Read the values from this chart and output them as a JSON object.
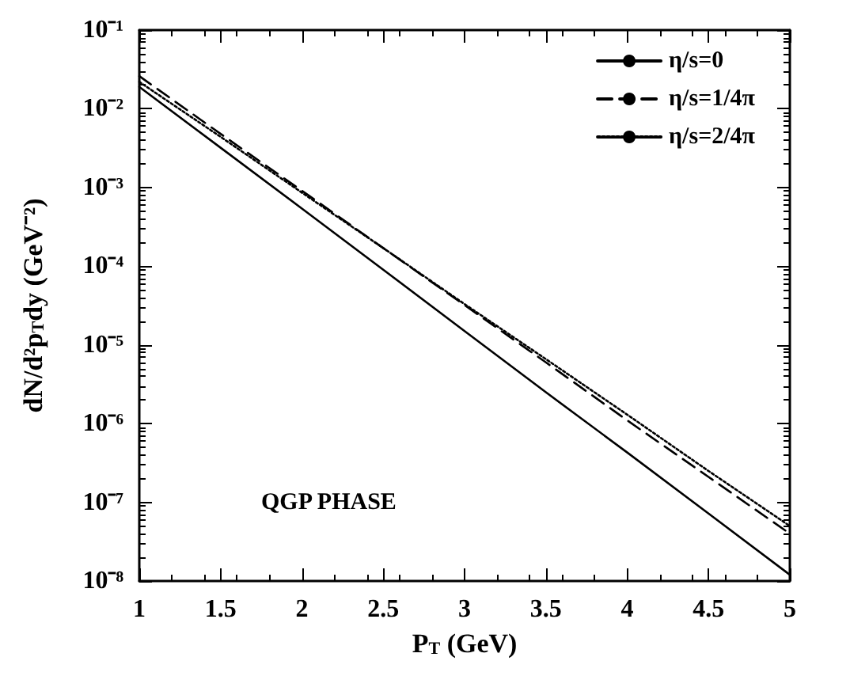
{
  "chart_data": {
    "type": "line",
    "xlabel": "P$_{T}$ (GeV)",
    "ylabel": "dN/d²p$_{T}$dy (GeV⁻²)",
    "x": [
      1,
      1.5,
      2,
      2.5,
      3,
      3.5,
      4,
      4.5,
      5
    ],
    "series": [
      {
        "name": "η/s=0",
        "color": "#000000",
        "line_style": "solid",
        "values": [
          0.019,
          0.0032,
          0.00054,
          9e-05,
          1.5e-05,
          2.5e-06,
          4.3e-07,
          7.2e-08,
          1.2e-08
        ]
      },
      {
        "name": "η/s=1/4π",
        "color": "#000000",
        "line_style": "dashed",
        "values": [
          0.026,
          0.0048,
          0.00091,
          0.00017,
          3.2e-05,
          6e-06,
          1.1e-06,
          2.1e-07,
          4e-08
        ]
      },
      {
        "name": "η/s=2/4π",
        "color": "#000000",
        "line_style": "dotted",
        "values": [
          0.022,
          0.0044,
          0.00086,
          0.00017,
          3.3e-05,
          6.6e-06,
          1.3e-06,
          2.5e-07,
          5e-08
        ]
      }
    ],
    "xlim": [
      1,
      5
    ],
    "xticks": [
      1,
      1.5,
      2,
      2.5,
      3,
      3.5,
      4,
      4.5,
      5
    ],
    "ylim": [
      1e-08,
      0.1
    ],
    "yticks": [
      {
        "value": 1e-08,
        "label": "10⁻⁸"
      },
      {
        "value": 1e-07,
        "label": "10⁻⁷"
      },
      {
        "value": 1e-06,
        "label": "10⁻⁶"
      },
      {
        "value": 1e-05,
        "label": "10⁻⁵"
      },
      {
        "value": 0.0001,
        "label": "10⁻⁴"
      },
      {
        "value": 0.001,
        "label": "10⁻³"
      },
      {
        "value": 0.01,
        "label": "10⁻²"
      },
      {
        "value": 0.1,
        "label": "10⁻¹"
      }
    ],
    "log": "y",
    "grid": false,
    "legend": "top right",
    "marker": "none",
    "annotations": [
      "QGP PHASE"
    ]
  }
}
